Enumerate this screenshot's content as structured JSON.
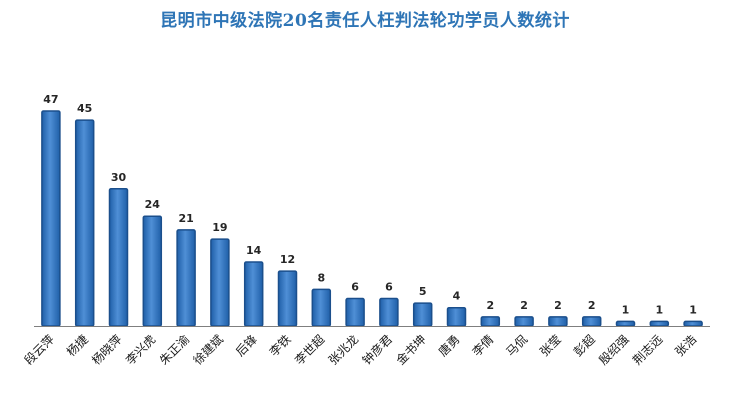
{
  "chart_data": {
    "type": "bar",
    "title": "昆明市中级法院20名责任人枉判法轮功学员人数统计",
    "xlabel": "",
    "ylabel": "",
    "ylim": [
      0,
      50
    ],
    "grid": false,
    "legend": "none",
    "categories": [
      "段云萍",
      "杨捷",
      "杨晓萍",
      "李兴虎",
      "朱正渝",
      "徐建斌",
      "后锋",
      "李铁",
      "李世超",
      "张兆龙",
      "钟彦君",
      "金书坤",
      "唐勇",
      "李倩",
      "马侃",
      "张莹",
      "彭超",
      "殷绍强",
      "荆志远",
      "张浩"
    ],
    "values": [
      47,
      45,
      30,
      24,
      21,
      19,
      14,
      12,
      8,
      6,
      6,
      5,
      4,
      2,
      2,
      2,
      2,
      1,
      1,
      1
    ],
    "value_labels": [
      "47",
      "45",
      "30",
      "24",
      "21",
      "19",
      "14",
      "12",
      "8",
      "6",
      "6",
      "5",
      "4",
      "2",
      "2",
      "2",
      "2",
      "1",
      "1",
      "1"
    ]
  },
  "colors": {
    "title": "#2e75b6",
    "bar_light": "#4f8fd6",
    "bar_dark": "#1f5fa8",
    "bar_edge": "#1b4f8c",
    "axis": "#7f7f7f"
  }
}
